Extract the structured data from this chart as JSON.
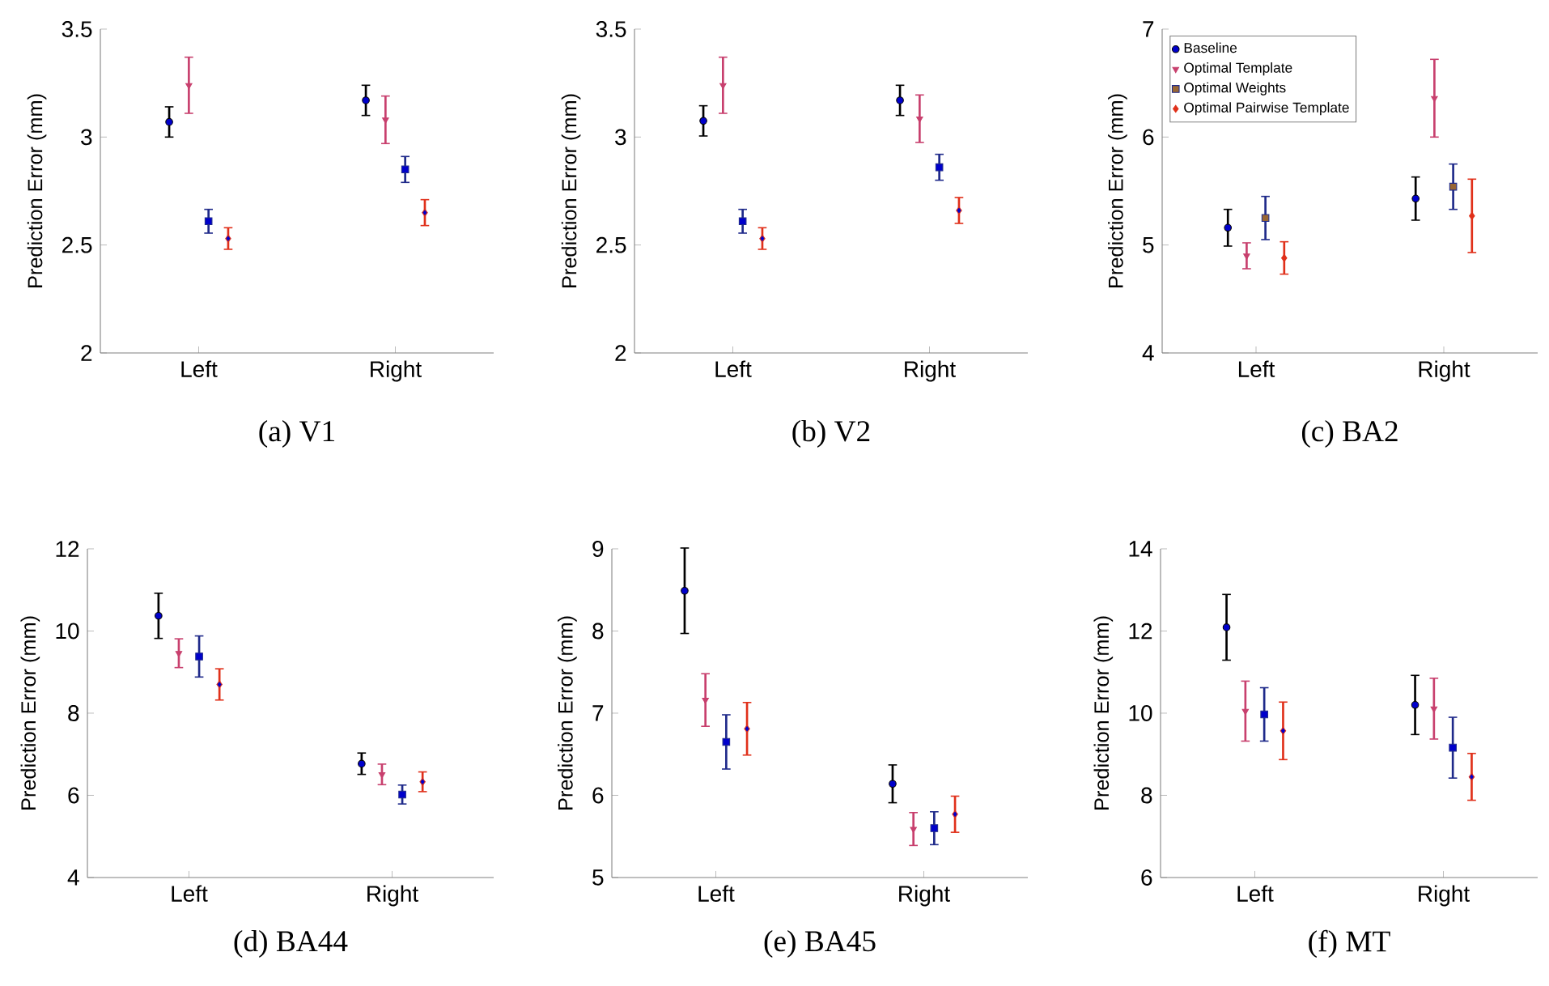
{
  "chart_data": [
    {
      "type": "scatter",
      "title": "(a) V1",
      "ylabel": "Prediction Error (mm)",
      "categories": [
        "Left",
        "Right"
      ],
      "ylim": [
        2,
        3.5
      ],
      "yticks": [
        2,
        2.5,
        3,
        3.5
      ],
      "legend": false,
      "series": [
        {
          "color": "#000000",
          "marker": "circle",
          "values": [
            3.07,
            3.17
          ],
          "errors": [
            0.07,
            0.07
          ]
        },
        {
          "color": "#c8406e",
          "marker": "triangle",
          "values": [
            3.24,
            3.08
          ],
          "errors": [
            0.13,
            0.11
          ]
        },
        {
          "color": "#1f2a8a",
          "marker": "square",
          "values": [
            2.61,
            2.85
          ],
          "errors": [
            0.055,
            0.06
          ]
        },
        {
          "color": "#e0301a",
          "marker": "diamond",
          "values": [
            2.53,
            2.65
          ],
          "errors": [
            0.05,
            0.06
          ]
        }
      ]
    },
    {
      "type": "scatter",
      "title": "(b) V2",
      "ylabel": "Prediction Error (mm)",
      "categories": [
        "Left",
        "Right"
      ],
      "ylim": [
        2,
        3.5
      ],
      "yticks": [
        2,
        2.5,
        3,
        3.5
      ],
      "legend": false,
      "series": [
        {
          "color": "#000000",
          "marker": "circle",
          "values": [
            3.075,
            3.17
          ],
          "errors": [
            0.07,
            0.07
          ]
        },
        {
          "color": "#c8406e",
          "marker": "triangle",
          "values": [
            3.24,
            3.085
          ],
          "errors": [
            0.13,
            0.11
          ]
        },
        {
          "color": "#1f2a8a",
          "marker": "square",
          "values": [
            2.61,
            2.86
          ],
          "errors": [
            0.055,
            0.06
          ]
        },
        {
          "color": "#e0301a",
          "marker": "diamond",
          "values": [
            2.53,
            2.66
          ],
          "errors": [
            0.05,
            0.06
          ]
        }
      ]
    },
    {
      "type": "scatter",
      "title": "(c) BA2",
      "ylabel": "Prediction Error (mm)",
      "categories": [
        "Left",
        "Right"
      ],
      "ylim": [
        4,
        7
      ],
      "yticks": [
        4,
        5,
        6,
        7
      ],
      "legend": "top left",
      "series": [
        {
          "name": "Baseline",
          "color": "#000000",
          "marker": "circle",
          "values": [
            5.16,
            5.43
          ],
          "errors": [
            0.17,
            0.2
          ]
        },
        {
          "name": "Optimal Template",
          "color": "#c8406e",
          "marker": "triangle",
          "values": [
            4.9,
            6.36
          ],
          "errors": [
            0.12,
            0.36
          ]
        },
        {
          "name": "Optimal Weights",
          "color": "#1f2a8a",
          "marker": "square",
          "values": [
            5.25,
            5.54
          ],
          "errors": [
            0.2,
            0.21
          ]
        },
        {
          "name": "Optimal Pairwise Template",
          "color": "#e0301a",
          "marker": "diamond",
          "values": [
            4.88,
            5.27
          ],
          "errors": [
            0.15,
            0.34
          ]
        }
      ]
    },
    {
      "type": "scatter",
      "title": "(d) BA44",
      "ylabel": "Prediction Error (mm)",
      "categories": [
        "Left",
        "Right"
      ],
      "ylim": [
        4,
        12
      ],
      "yticks": [
        4,
        6,
        8,
        10,
        12
      ],
      "legend": false,
      "series": [
        {
          "color": "#000000",
          "marker": "circle",
          "values": [
            10.37,
            6.77
          ],
          "errors": [
            0.55,
            0.26
          ]
        },
        {
          "color": "#c8406e",
          "marker": "triangle",
          "values": [
            9.46,
            6.51
          ],
          "errors": [
            0.35,
            0.25
          ]
        },
        {
          "color": "#1f2a8a",
          "marker": "square",
          "values": [
            9.38,
            6.02
          ],
          "errors": [
            0.5,
            0.23
          ]
        },
        {
          "color": "#e0301a",
          "marker": "diamond",
          "values": [
            8.7,
            6.33
          ],
          "errors": [
            0.38,
            0.24
          ]
        }
      ]
    },
    {
      "type": "scatter",
      "title": "(e) BA45",
      "ylabel": "Prediction Error (mm)",
      "categories": [
        "Left",
        "Right"
      ],
      "ylim": [
        5,
        9
      ],
      "yticks": [
        5,
        6,
        7,
        8,
        9
      ],
      "legend": false,
      "series": [
        {
          "color": "#000000",
          "marker": "circle",
          "values": [
            8.49,
            6.14
          ],
          "errors": [
            0.52,
            0.23
          ]
        },
        {
          "color": "#c8406e",
          "marker": "triangle",
          "values": [
            7.16,
            5.59
          ],
          "errors": [
            0.32,
            0.2
          ]
        },
        {
          "color": "#1f2a8a",
          "marker": "square",
          "values": [
            6.65,
            5.6
          ],
          "errors": [
            0.33,
            0.2
          ]
        },
        {
          "color": "#e0301a",
          "marker": "diamond",
          "values": [
            6.81,
            5.77
          ],
          "errors": [
            0.32,
            0.22
          ]
        }
      ]
    },
    {
      "type": "scatter",
      "title": "(f) MT",
      "ylabel": "Prediction Error (mm)",
      "categories": [
        "Left",
        "Right"
      ],
      "ylim": [
        6,
        14
      ],
      "yticks": [
        6,
        8,
        10,
        12,
        14
      ],
      "legend": false,
      "series": [
        {
          "color": "#000000",
          "marker": "circle",
          "values": [
            12.09,
            10.2
          ],
          "errors": [
            0.8,
            0.72
          ]
        },
        {
          "color": "#c8406e",
          "marker": "triangle",
          "values": [
            10.05,
            10.11
          ],
          "errors": [
            0.73,
            0.74
          ]
        },
        {
          "color": "#1f2a8a",
          "marker": "square",
          "values": [
            9.97,
            9.16
          ],
          "errors": [
            0.65,
            0.74
          ]
        },
        {
          "color": "#e0301a",
          "marker": "diamond",
          "values": [
            9.57,
            8.45
          ],
          "errors": [
            0.7,
            0.57
          ]
        }
      ]
    }
  ]
}
